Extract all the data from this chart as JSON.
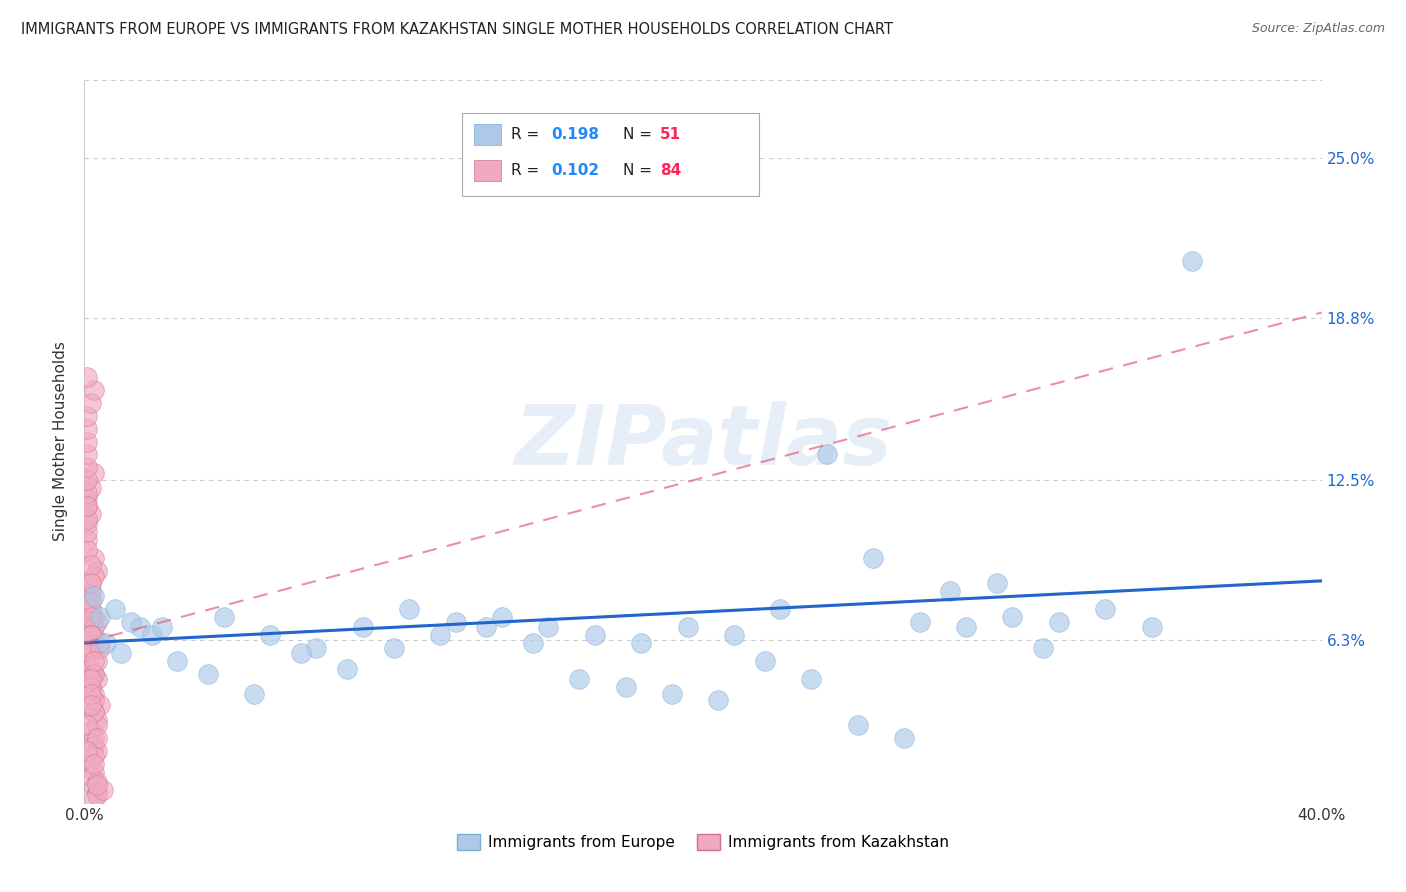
{
  "title": "IMMIGRANTS FROM EUROPE VS IMMIGRANTS FROM KAZAKHSTAN SINGLE MOTHER HOUSEHOLDS CORRELATION CHART",
  "source": "Source: ZipAtlas.com",
  "ylabel": "Single Mother Households",
  "xlim": [
    0.0,
    0.4
  ],
  "ylim": [
    0.0,
    0.28
  ],
  "xtick_positions": [
    0.0,
    0.05,
    0.1,
    0.15,
    0.2,
    0.25,
    0.3,
    0.35,
    0.4
  ],
  "ytick_positions": [
    0.063,
    0.125,
    0.188,
    0.25
  ],
  "ytick_labels": [
    "6.3%",
    "12.5%",
    "18.8%",
    "25.0%"
  ],
  "series1_name": "Immigrants from Europe",
  "series1_color": "#adc8e8",
  "series1_edge_color": "#7aadd4",
  "series1_line_color": "#2266cc",
  "series1_R": 0.198,
  "series1_N": 51,
  "series2_name": "Immigrants from Kazakhstan",
  "series2_color": "#f0aabf",
  "series2_edge_color": "#d07090",
  "series2_line_color": "#e06080",
  "series2_R": 0.102,
  "series2_N": 84,
  "background_color": "#ffffff",
  "grid_color": "#cccccc",
  "watermark": "ZIPatlas",
  "legend_R_color": "#2288ff",
  "legend_N_color": "#ff2255",
  "eu_line_y0": 0.062,
  "eu_line_y1": 0.086,
  "kz_line_y0": 0.062,
  "kz_line_y1": 0.19,
  "europe_x": [
    0.007,
    0.012,
    0.018,
    0.005,
    0.022,
    0.003,
    0.015,
    0.01,
    0.025,
    0.03,
    0.045,
    0.06,
    0.075,
    0.09,
    0.105,
    0.12,
    0.135,
    0.15,
    0.165,
    0.18,
    0.195,
    0.21,
    0.225,
    0.24,
    0.255,
    0.27,
    0.285,
    0.3,
    0.315,
    0.33,
    0.345,
    0.358,
    0.04,
    0.055,
    0.07,
    0.085,
    0.1,
    0.115,
    0.13,
    0.145,
    0.16,
    0.175,
    0.19,
    0.205,
    0.22,
    0.235,
    0.25,
    0.265,
    0.28,
    0.295,
    0.31
  ],
  "europe_y": [
    0.062,
    0.058,
    0.068,
    0.072,
    0.065,
    0.08,
    0.07,
    0.075,
    0.068,
    0.055,
    0.072,
    0.065,
    0.06,
    0.068,
    0.075,
    0.07,
    0.072,
    0.068,
    0.065,
    0.062,
    0.068,
    0.065,
    0.075,
    0.135,
    0.095,
    0.07,
    0.068,
    0.072,
    0.07,
    0.075,
    0.068,
    0.21,
    0.05,
    0.042,
    0.058,
    0.052,
    0.06,
    0.065,
    0.068,
    0.062,
    0.048,
    0.045,
    0.042,
    0.04,
    0.055,
    0.048,
    0.03,
    0.025,
    0.082,
    0.085,
    0.06
  ],
  "kazakhstan_x": [
    0.001,
    0.002,
    0.001,
    0.003,
    0.002,
    0.001,
    0.002,
    0.003,
    0.001,
    0.002,
    0.003,
    0.002,
    0.001,
    0.003,
    0.004,
    0.002,
    0.001,
    0.003,
    0.002,
    0.004,
    0.005,
    0.003,
    0.002,
    0.001,
    0.004,
    0.002,
    0.003,
    0.001,
    0.005,
    0.002,
    0.003,
    0.001,
    0.004,
    0.002,
    0.003,
    0.001,
    0.002,
    0.003,
    0.004,
    0.002,
    0.001,
    0.003,
    0.002,
    0.004,
    0.001,
    0.002,
    0.003,
    0.001,
    0.002,
    0.004,
    0.003,
    0.001,
    0.002,
    0.003,
    0.004,
    0.002,
    0.001,
    0.003,
    0.002,
    0.001,
    0.004,
    0.002,
    0.003,
    0.001,
    0.002,
    0.004,
    0.003,
    0.002,
    0.001,
    0.003,
    0.005,
    0.002,
    0.001,
    0.003,
    0.006,
    0.004,
    0.002,
    0.003,
    0.001,
    0.002,
    0.004,
    0.003,
    0.002,
    0.001
  ],
  "kazakhstan_y": [
    0.118,
    0.112,
    0.108,
    0.128,
    0.122,
    0.115,
    0.068,
    0.072,
    0.078,
    0.082,
    0.065,
    0.06,
    0.055,
    0.095,
    0.09,
    0.085,
    0.075,
    0.05,
    0.045,
    0.07,
    0.062,
    0.088,
    0.058,
    0.102,
    0.048,
    0.052,
    0.042,
    0.098,
    0.038,
    0.08,
    0.035,
    0.105,
    0.032,
    0.075,
    0.068,
    0.11,
    0.028,
    0.025,
    0.03,
    0.092,
    0.12,
    0.022,
    0.065,
    0.02,
    0.115,
    0.06,
    0.018,
    0.125,
    0.015,
    0.055,
    0.012,
    0.13,
    0.01,
    0.05,
    0.008,
    0.085,
    0.135,
    0.006,
    0.045,
    0.14,
    0.004,
    0.078,
    0.002,
    0.145,
    0.072,
    0.003,
    0.04,
    0.065,
    0.15,
    0.035,
    0.06,
    0.155,
    0.03,
    0.055,
    0.005,
    0.025,
    0.048,
    0.16,
    0.02,
    0.042,
    0.007,
    0.015,
    0.038,
    0.165
  ]
}
